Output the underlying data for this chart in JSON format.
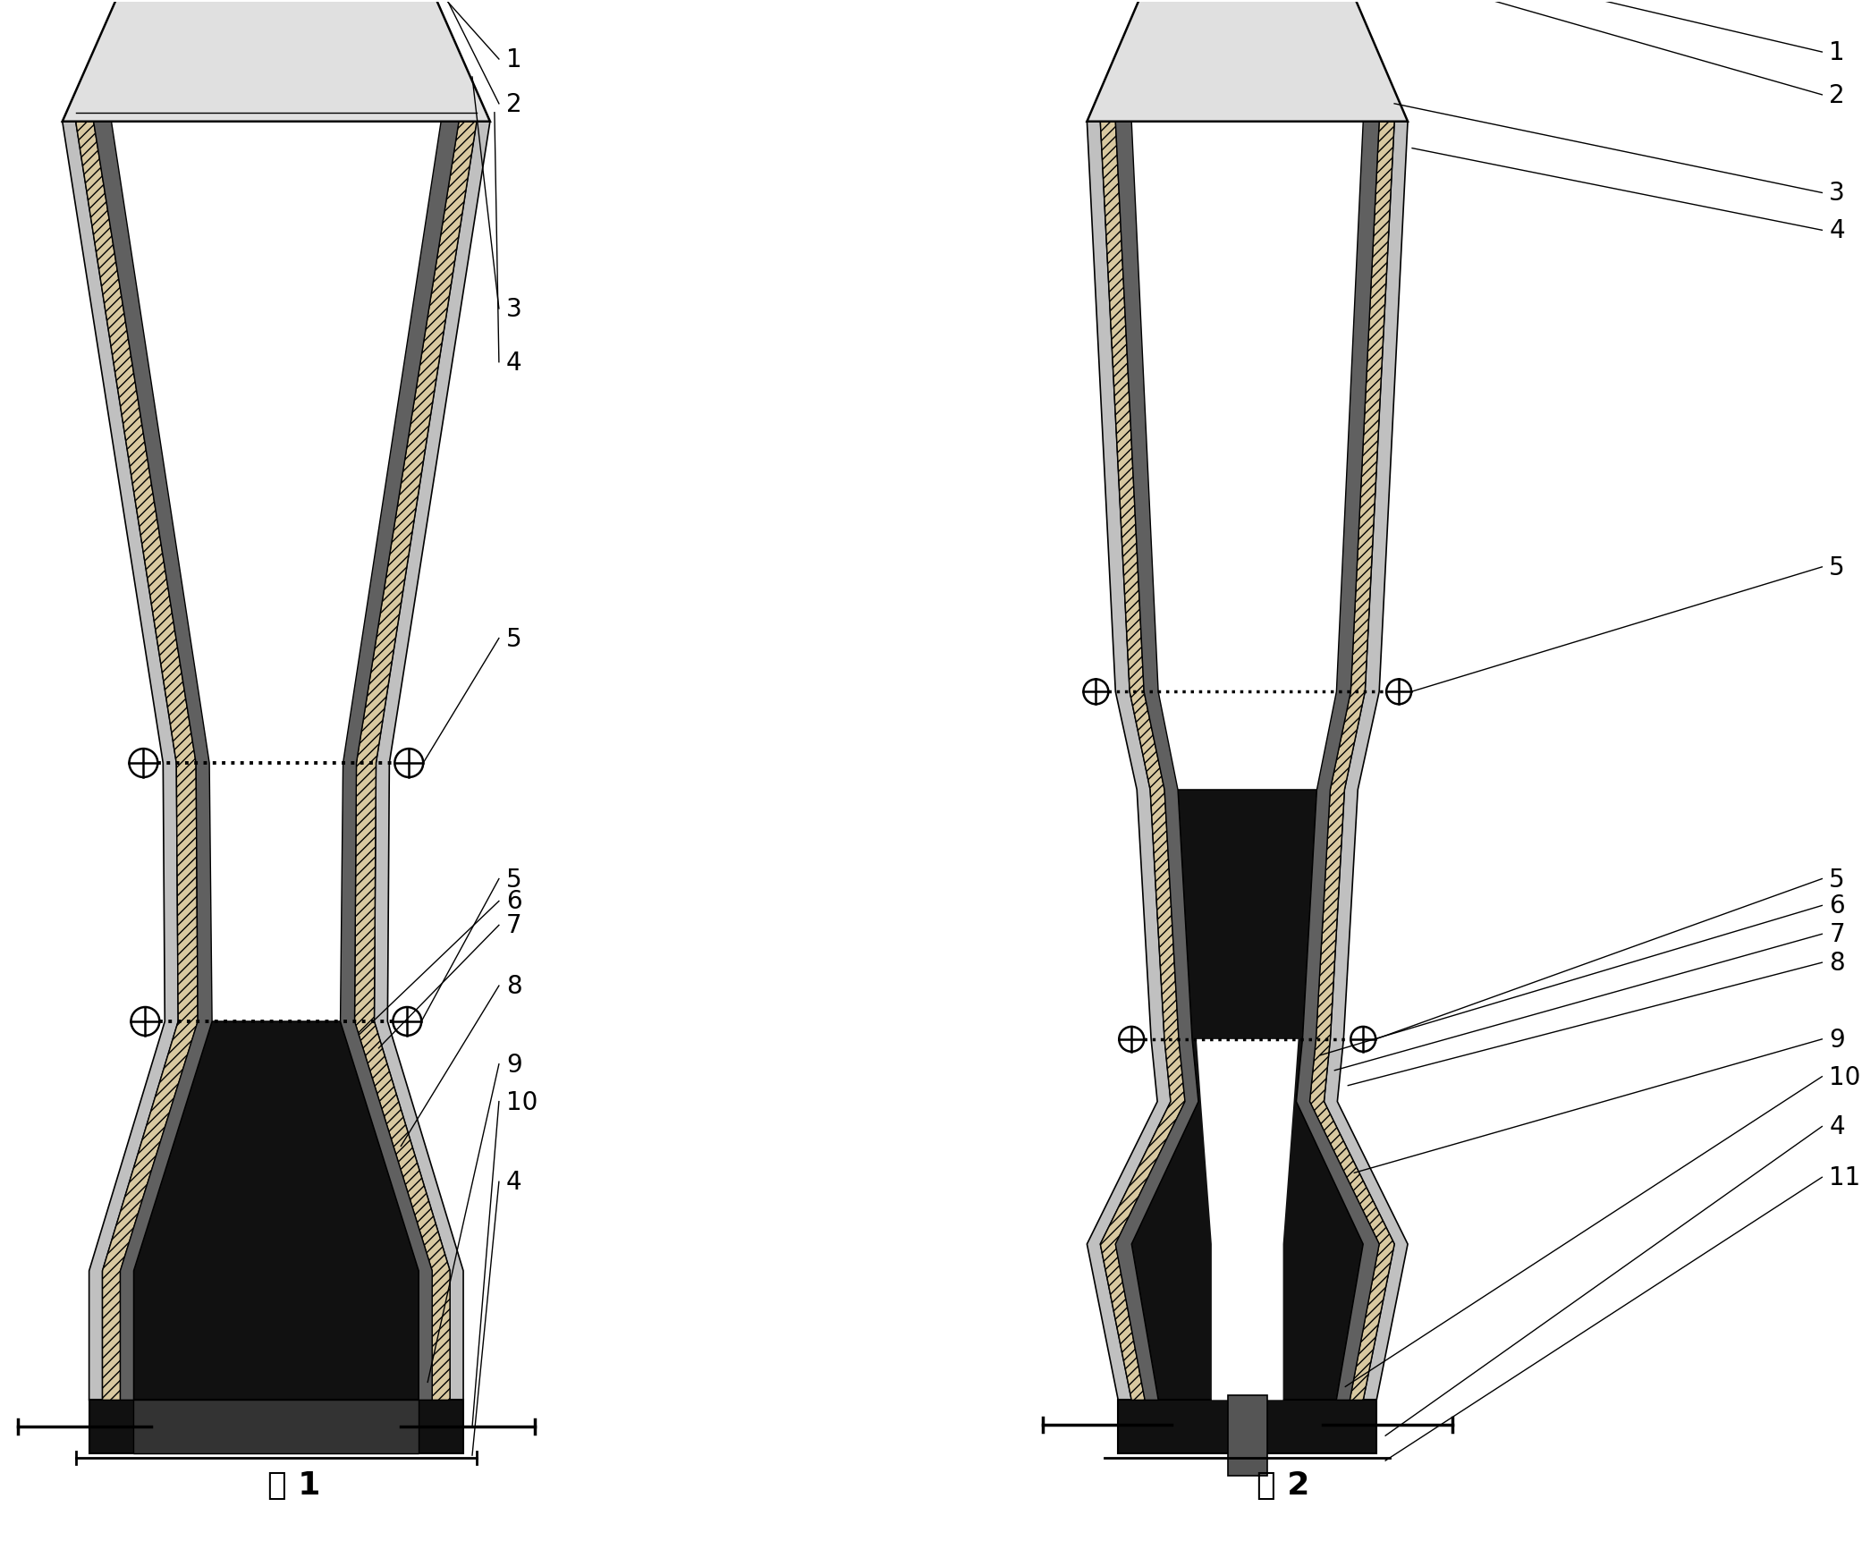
{
  "fig_width": 20.82,
  "fig_height": 17.24,
  "dpi": 100,
  "bg_color": "#ffffff",
  "fig1_label": "图 1",
  "fig2_label": "图 2",
  "label_fontsize": 26,
  "number_fontsize": 20
}
